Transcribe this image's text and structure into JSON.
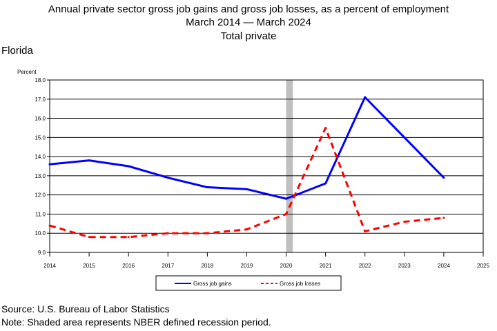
{
  "header": {
    "title_line1": "Annual private sector gross job gains and gross job losses, as a percent of employment",
    "title_line2": "March 2014 — March 2024",
    "title_line3": "Total private",
    "region": "Florida"
  },
  "footer": {
    "source": "Source: U.S. Bureau of Labor Statistics",
    "note": "Note: Shaded area represents NBER defined recession period."
  },
  "chart_data": {
    "type": "line",
    "ylabel": "Percent",
    "xlim": [
      2014,
      2025
    ],
    "ylim": [
      9.0,
      18.0
    ],
    "x_ticks": [
      "2014",
      "2015",
      "2016",
      "2017",
      "2018",
      "2019",
      "2020",
      "2021",
      "2022",
      "2023",
      "2024",
      "2025"
    ],
    "y_ticks": [
      "9.0",
      "10.0",
      "11.0",
      "12.0",
      "13.0",
      "14.0",
      "15.0",
      "16.0",
      "17.0",
      "18.0"
    ],
    "grid": "horizontal",
    "recession_shading": {
      "start": 2020.0,
      "end": 2020.17,
      "color": "#c0c0c0"
    },
    "legend_position": "bottom",
    "series": [
      {
        "name": "Gross job gains",
        "color": "#0000ff",
        "style": "solid",
        "x": [
          2014,
          2015,
          2016,
          2017,
          2018,
          2019,
          2020,
          2021,
          2022,
          2023,
          2024
        ],
        "values": [
          13.6,
          13.8,
          13.5,
          12.9,
          12.4,
          12.3,
          11.8,
          12.6,
          17.1,
          15.0,
          12.9
        ]
      },
      {
        "name": "Gross job losses",
        "color": "#ff0000",
        "style": "dashed",
        "x": [
          2014,
          2015,
          2016,
          2017,
          2018,
          2019,
          2020,
          2021,
          2022,
          2023,
          2024
        ],
        "values": [
          10.4,
          9.8,
          9.8,
          10.0,
          10.0,
          10.2,
          11.0,
          15.5,
          10.1,
          10.6,
          10.8
        ]
      }
    ]
  }
}
